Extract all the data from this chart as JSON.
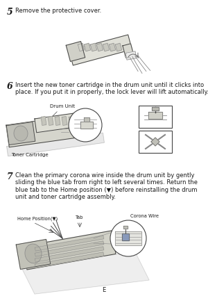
{
  "page_color": "#ffffff",
  "step5_num": "5",
  "step5_text": "Remove the protective cover.",
  "step6_num": "6",
  "step6_text": "Insert the new toner cartridge in the drum unit until it clicks into\nplace. If you put it in properly, the lock lever will lift automatically.",
  "step7_num": "7",
  "step7_text": "Clean the primary corona wire inside the drum unit by gently\nsliding the blue tab from right to left several times. Return the\nblue tab to the Home position (▼) before reinstalling the drum\nunit and toner cartridge assembly.",
  "label_drum_unit": "Drum Unit",
  "label_toner_cartridge": "Toner Cartridge",
  "label_home_position": "Home Position(▼)",
  "label_tab": "Tab",
  "label_corona_wire": "Corona Wire",
  "footer": "E",
  "text_color": "#1a1a1a",
  "line_color": "#444444",
  "gray1": "#aaaaaa",
  "gray2": "#cccccc",
  "gray3": "#888888",
  "gray4": "#666666",
  "fig_width": 3.0,
  "fig_height": 4.26,
  "dpi": 100
}
